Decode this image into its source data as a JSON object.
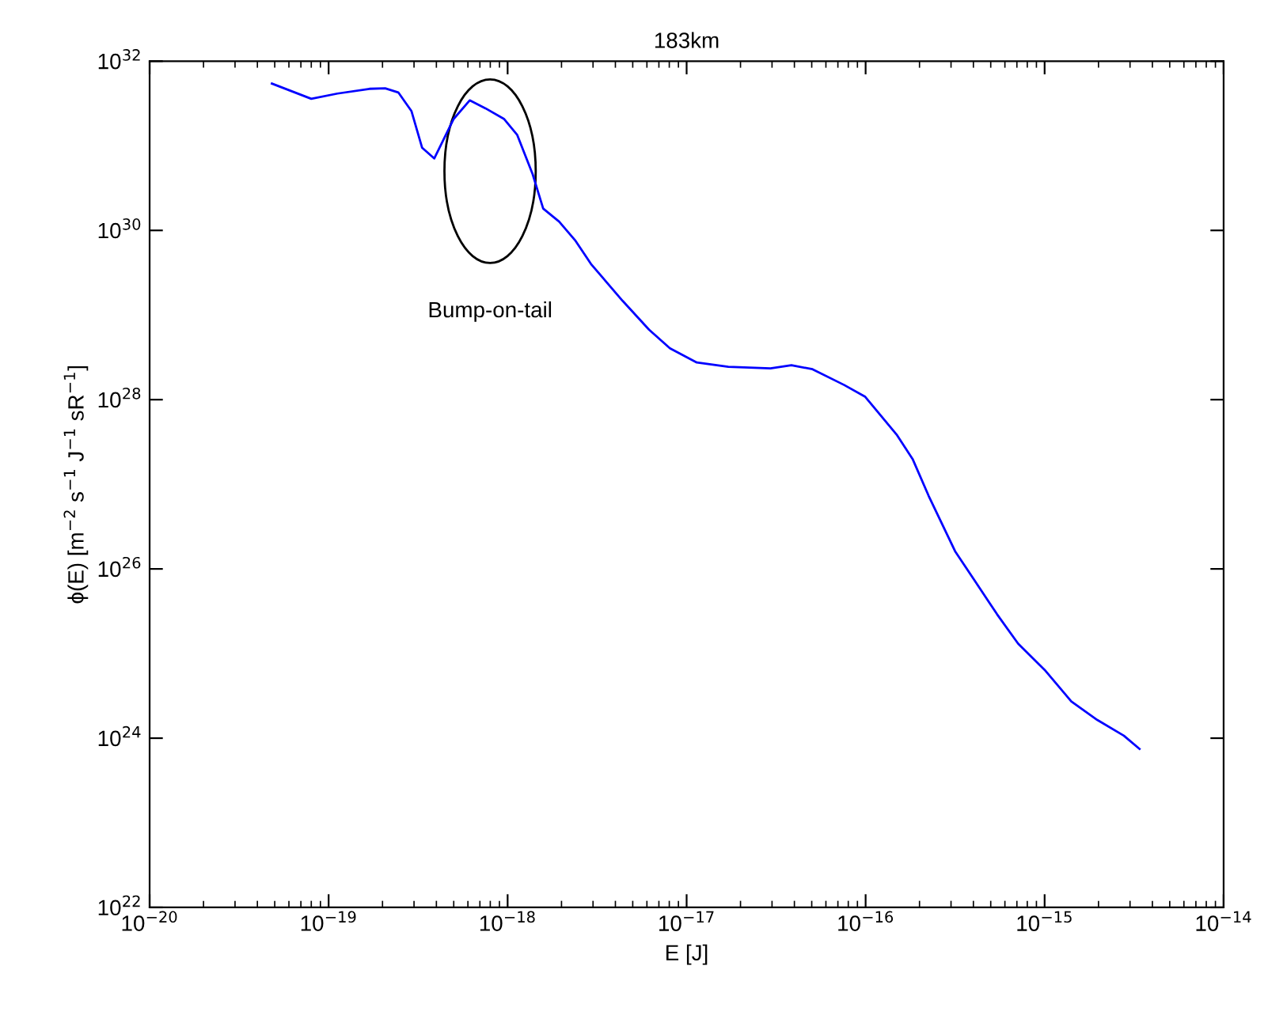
{
  "chart_data": {
    "type": "line",
    "title": "183km",
    "xlabel": "E [J]",
    "ylabel": "ϕ(E) [m$^{−2}$ s$^{−1}$ J$^{−1}$ sR$^{−1}$]",
    "log": "xy",
    "grid": false,
    "legend": false,
    "marker": "none",
    "line_style": "solid",
    "xlim": [
      1e-20,
      1e-14
    ],
    "ylim": [
      1e+22,
      1e+32
    ],
    "xticks": [
      {
        "value": 1e-20,
        "label": "10$^{−20}$"
      },
      {
        "value": 1e-19,
        "label": "10$^{−19}$"
      },
      {
        "value": 1e-18,
        "label": "10$^{−18}$"
      },
      {
        "value": 1e-17,
        "label": "10$^{−17}$"
      },
      {
        "value": 1e-16,
        "label": "10$^{−16}$"
      },
      {
        "value": 1e-15,
        "label": "10$^{−15}$"
      },
      {
        "value": 1e-14,
        "label": "10$^{−14}$"
      }
    ],
    "yticks": [
      {
        "value": 1e+22,
        "label": "10$^{22}$"
      },
      {
        "value": 1e+24,
        "label": "10$^{24}$"
      },
      {
        "value": 1e+26,
        "label": "10$^{26}$"
      },
      {
        "value": 1e+28,
        "label": "10$^{28}$"
      },
      {
        "value": 1e+30,
        "label": "10$^{30}$"
      },
      {
        "value": 1e+32,
        "label": "10$^{32}$"
      }
    ],
    "annotations": [
      "Bump-on-tail"
    ],
    "series": [
      {
        "color": "#0000ff",
        "x": [
          4.82e-20,
          8e-20,
          1.12e-19,
          1.69e-19,
          2.07e-19,
          2.45e-19,
          2.9e-19,
          3.33e-19,
          3.89e-19,
          5e-19,
          6.14e-19,
          7.52e-19,
          9.53e-19,
          1.13e-18,
          1.38e-18,
          1.58e-18,
          1.94e-18,
          2.38e-18,
          2.92e-18,
          4.39e-18,
          6.17e-18,
          8.07e-18,
          1.14e-17,
          1.71e-17,
          2.94e-17,
          3.85e-17,
          5.05e-17,
          7.59e-17,
          9.95e-17,
          1.5e-16,
          1.83e-16,
          2.25e-16,
          3.16e-16,
          4.14e-16,
          5.43e-16,
          7.11e-16,
          1e-15,
          1.41e-15,
          1.97e-15,
          2.77e-15,
          3.39e-15
        ],
        "values": [
          5.43e+31,
          3.59e+31,
          4.14e+31,
          4.71e+31,
          4.78e+31,
          4.27e+31,
          2.58e+31,
          9.46e+30,
          7.08e+30,
          2.08e+31,
          3.44e+31,
          2.77e+31,
          2.08e+31,
          1.35e+31,
          4.61e+30,
          1.81e+30,
          1.27e+30,
          7.66e+29,
          4.02e+29,
          1.47e+29,
          6.7e+28,
          4.05e+28,
          2.75e+28,
          2.45e+28,
          2.34e+28,
          2.55e+28,
          2.29e+28,
          1.49e+28,
          1.08e+28,
          3.79e+27,
          1.99e+27,
          7.29e+26,
          1.62e+26,
          6.86e+25,
          2.9e+25,
          1.31e+25,
          6.41e+24,
          2.71e+24,
          1.64e+24,
          1.07e+24,
          7.46e+23
        ]
      }
    ]
  }
}
